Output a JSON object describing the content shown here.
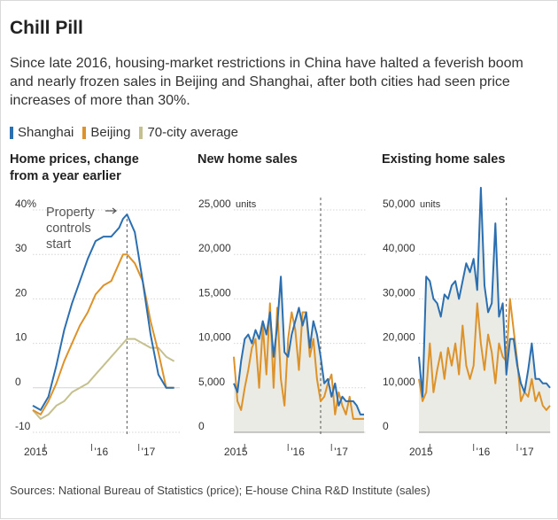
{
  "header": {
    "title": "Chill Pill",
    "subtitle": "Since late 2016, housing-market restrictions in China have halted a feverish boom and nearly frozen sales in Beijing and Shanghai, after both cities had seen price increases of more than 30%."
  },
  "legend": [
    {
      "name": "Shanghai",
      "color": "#2c6fb0"
    },
    {
      "name": "Beijing",
      "color": "#dd922a"
    },
    {
      "name": "70-city average",
      "color": "#c5c08f"
    }
  ],
  "annotation": {
    "line1": "Property",
    "line2": "controls",
    "line3": "start"
  },
  "source": "Sources: National Bureau of Statistics (price); E-house China R&D Institute (sales)",
  "chart_data": [
    {
      "type": "line",
      "title": "Home prices, change from a year earlier",
      "title_lines": [
        "Home prices, change",
        "from a year earlier"
      ],
      "x": [
        "2014-10",
        "2014-12",
        "2015-02",
        "2015-04",
        "2015-06",
        "2015-08",
        "2015-10",
        "2015-12",
        "2016-02",
        "2016-04",
        "2016-06",
        "2016-08",
        "2016-09",
        "2016-10",
        "2016-12",
        "2017-02",
        "2017-04",
        "2017-06",
        "2017-08",
        "2017-10"
      ],
      "xlim": [
        "2014-10",
        "2017-11"
      ],
      "x_ticks": [
        {
          "label": "2015",
          "at": "2015-01"
        },
        {
          "label": "'16",
          "at": "2016-01"
        },
        {
          "label": "'17",
          "at": "2017-01"
        }
      ],
      "ylim": [
        -10,
        40
      ],
      "y_ticks": [
        {
          "label": "40%",
          "value": 40
        },
        {
          "label": "30",
          "value": 30
        },
        {
          "label": "20",
          "value": 20
        },
        {
          "label": "10",
          "value": 10
        },
        {
          "label": "0",
          "value": 0
        },
        {
          "label": "-10",
          "value": -10
        }
      ],
      "vline": "2016-10",
      "series": [
        {
          "name": "Shanghai",
          "color": "#2c6fb0",
          "values": [
            -4,
            -5,
            -2,
            5,
            13,
            19,
            24,
            29,
            33,
            34,
            34,
            36,
            38,
            39,
            35,
            24,
            12,
            3,
            0,
            0
          ]
        },
        {
          "name": "Beijing",
          "color": "#dd922a",
          "values": [
            -5,
            -6,
            -3,
            1,
            6,
            10,
            14,
            17,
            21,
            23,
            24,
            28,
            30,
            30,
            28,
            24,
            15,
            8,
            0,
            0
          ]
        },
        {
          "name": "70-city average",
          "color": "#c5c08f",
          "values": [
            -5,
            -7,
            -6,
            -4,
            -3,
            -1,
            0,
            1,
            3,
            5,
            7,
            9,
            10,
            11,
            11,
            10,
            9,
            9,
            7,
            6
          ]
        }
      ]
    },
    {
      "type": "area",
      "title": "New home sales",
      "x": [
        "2014-10",
        "2014-11",
        "2014-12",
        "2015-01",
        "2015-02",
        "2015-03",
        "2015-04",
        "2015-05",
        "2015-06",
        "2015-07",
        "2015-08",
        "2015-09",
        "2015-10",
        "2015-11",
        "2015-12",
        "2016-01",
        "2016-02",
        "2016-03",
        "2016-04",
        "2016-05",
        "2016-06",
        "2016-07",
        "2016-08",
        "2016-09",
        "2016-10",
        "2016-11",
        "2016-12",
        "2017-01",
        "2017-02",
        "2017-03",
        "2017-04",
        "2017-05",
        "2017-06",
        "2017-07",
        "2017-08",
        "2017-09",
        "2017-10"
      ],
      "xlim": [
        "2014-10",
        "2017-10"
      ],
      "x_ticks": [
        {
          "label": "2015",
          "at": "2015-01"
        },
        {
          "label": "'16",
          "at": "2016-01"
        },
        {
          "label": "'17",
          "at": "2017-01"
        }
      ],
      "ylim": [
        0,
        25000
      ],
      "y_ticks": [
        {
          "label": "25,000",
          "value": 25000,
          "unit": "units"
        },
        {
          "label": "20,000",
          "value": 20000
        },
        {
          "label": "15,000",
          "value": 15000
        },
        {
          "label": "10,000",
          "value": 10000
        },
        {
          "label": "5,000",
          "value": 5000
        },
        {
          "label": "0",
          "value": 0
        }
      ],
      "vline": "2016-10",
      "series": [
        {
          "name": "Shanghai",
          "color": "#2c6fb0",
          "values": [
            5500,
            4500,
            8000,
            10500,
            11000,
            10000,
            11500,
            10500,
            12500,
            11000,
            13500,
            8500,
            12000,
            17500,
            9000,
            8500,
            11000,
            12500,
            14000,
            12000,
            13500,
            9500,
            12500,
            11000,
            8500,
            5500,
            6000,
            4000,
            5500,
            3000,
            4000,
            3500,
            3500,
            3500,
            3000,
            2000,
            2000
          ]
        },
        {
          "name": "Beijing",
          "color": "#dd922a",
          "values": [
            8500,
            3500,
            2500,
            5000,
            7000,
            9500,
            10500,
            5000,
            12000,
            6500,
            14500,
            5000,
            14000,
            6000,
            3000,
            10500,
            13500,
            11500,
            7000,
            13500,
            13500,
            8500,
            10500,
            6000,
            3500,
            4000,
            5500,
            6500,
            2000,
            4500,
            3000,
            2000,
            4000,
            1500,
            1500,
            1500,
            1500
          ]
        }
      ]
    },
    {
      "type": "area",
      "title": "Existing home sales",
      "x": [
        "2014-10",
        "2014-11",
        "2014-12",
        "2015-01",
        "2015-02",
        "2015-03",
        "2015-04",
        "2015-05",
        "2015-06",
        "2015-07",
        "2015-08",
        "2015-09",
        "2015-10",
        "2015-11",
        "2015-12",
        "2016-01",
        "2016-02",
        "2016-03",
        "2016-04",
        "2016-05",
        "2016-06",
        "2016-07",
        "2016-08",
        "2016-09",
        "2016-10",
        "2016-11",
        "2016-12",
        "2017-01",
        "2017-02",
        "2017-03",
        "2017-04",
        "2017-05",
        "2017-06",
        "2017-07",
        "2017-08",
        "2017-09",
        "2017-10"
      ],
      "xlim": [
        "2014-10",
        "2017-10"
      ],
      "x_ticks": [
        {
          "label": "2015",
          "at": "2015-01"
        },
        {
          "label": "'16",
          "at": "2016-01"
        },
        {
          "label": "'17",
          "at": "2017-01"
        }
      ],
      "ylim": [
        0,
        50000
      ],
      "y_ticks": [
        {
          "label": "50,000",
          "value": 50000,
          "unit": "units"
        },
        {
          "label": "40,000",
          "value": 40000
        },
        {
          "label": "30,000",
          "value": 30000
        },
        {
          "label": "20,000",
          "value": 20000
        },
        {
          "label": "10,000",
          "value": 10000
        },
        {
          "label": "0",
          "value": 0
        }
      ],
      "vline": "2016-10",
      "series": [
        {
          "name": "Shanghai",
          "color": "#2c6fb0",
          "values": [
            17000,
            8000,
            35000,
            34000,
            30000,
            29000,
            26000,
            31000,
            30000,
            33000,
            34000,
            30000,
            34000,
            38000,
            36000,
            39000,
            32000,
            55000,
            33000,
            27000,
            29000,
            47000,
            26000,
            29000,
            13000,
            21000,
            21000,
            15000,
            11000,
            9000,
            14000,
            20000,
            12000,
            12000,
            11000,
            11000,
            10000
          ]
        },
        {
          "name": "Beijing",
          "color": "#dd922a",
          "values": [
            12000,
            7000,
            9000,
            20000,
            9000,
            14000,
            18000,
            12000,
            19000,
            15000,
            20000,
            13000,
            24000,
            15000,
            12000,
            15000,
            29000,
            20000,
            14000,
            22000,
            18000,
            11000,
            20000,
            17000,
            16000,
            30000,
            23000,
            16000,
            7000,
            9000,
            8000,
            12000,
            7000,
            9000,
            6000,
            5000,
            6000
          ]
        }
      ]
    }
  ]
}
